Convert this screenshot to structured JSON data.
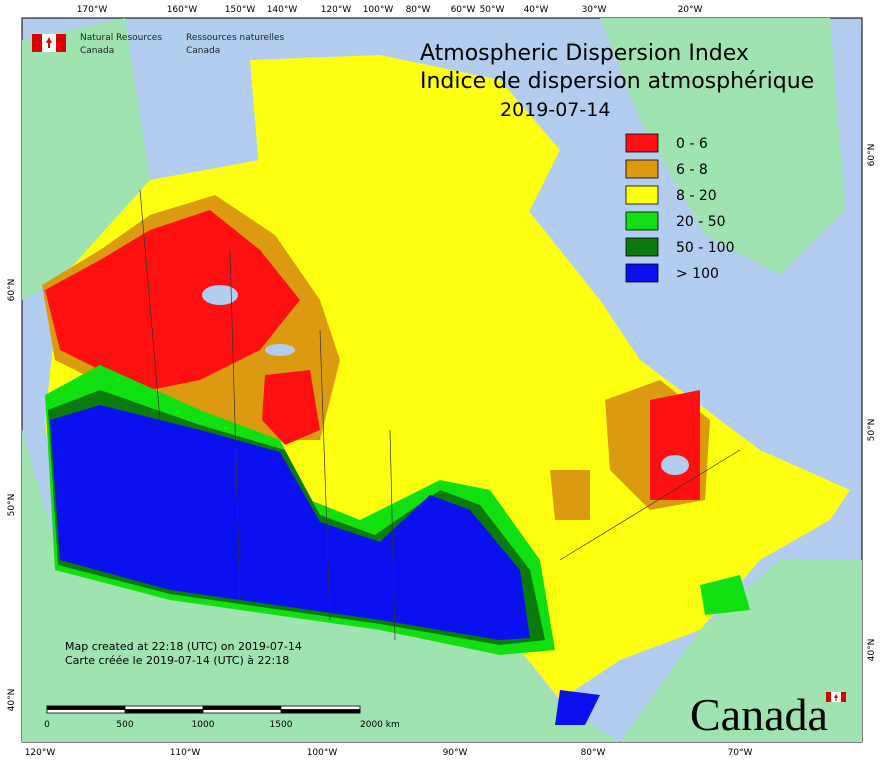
{
  "header": {
    "agency_en": [
      "Natural Resources",
      "Canada"
    ],
    "agency_fr": [
      "Ressources naturelles",
      "Canada"
    ],
    "title": [
      "Atmospheric Dispersion Index",
      "Indice de dispersion atmosphérique"
    ],
    "date": "2019-07-14"
  },
  "legend": [
    {
      "label": "0 - 6",
      "color": "#ff1010"
    },
    {
      "label": "6 - 8",
      "color": "#dc9a10"
    },
    {
      "label": "8 - 20",
      "color": "#ffff10"
    },
    {
      "label": "20 - 50",
      "color": "#10e010"
    },
    {
      "label": "50 - 100",
      "color": "#0a7a0a"
    },
    {
      "label": "> 100",
      "color": "#0a10f0"
    }
  ],
  "notes": [
    "Map created at 22:18 (UTC) on 2019-07-14",
    "Carte créée le 2019-07-14 (UTC) à 22:18"
  ],
  "scale_bar": [
    "0",
    "500",
    "1000",
    "1500",
    "2000 km"
  ],
  "graticule": {
    "top": [
      "170°W",
      "160°W",
      "150°W",
      "140°W",
      "120°W",
      "100°W",
      "80°W",
      "60°W",
      "50°W",
      "40°W",
      "30°W",
      "20°W"
    ],
    "bottom": [
      "120°W",
      "110°W",
      "100°W",
      "90°W",
      "80°W",
      "70°W"
    ],
    "left": [
      "60°N",
      "50°N",
      "40°N"
    ],
    "right": [
      "60°N",
      "50°N",
      "40°N"
    ]
  },
  "wordmark": "Canada"
}
